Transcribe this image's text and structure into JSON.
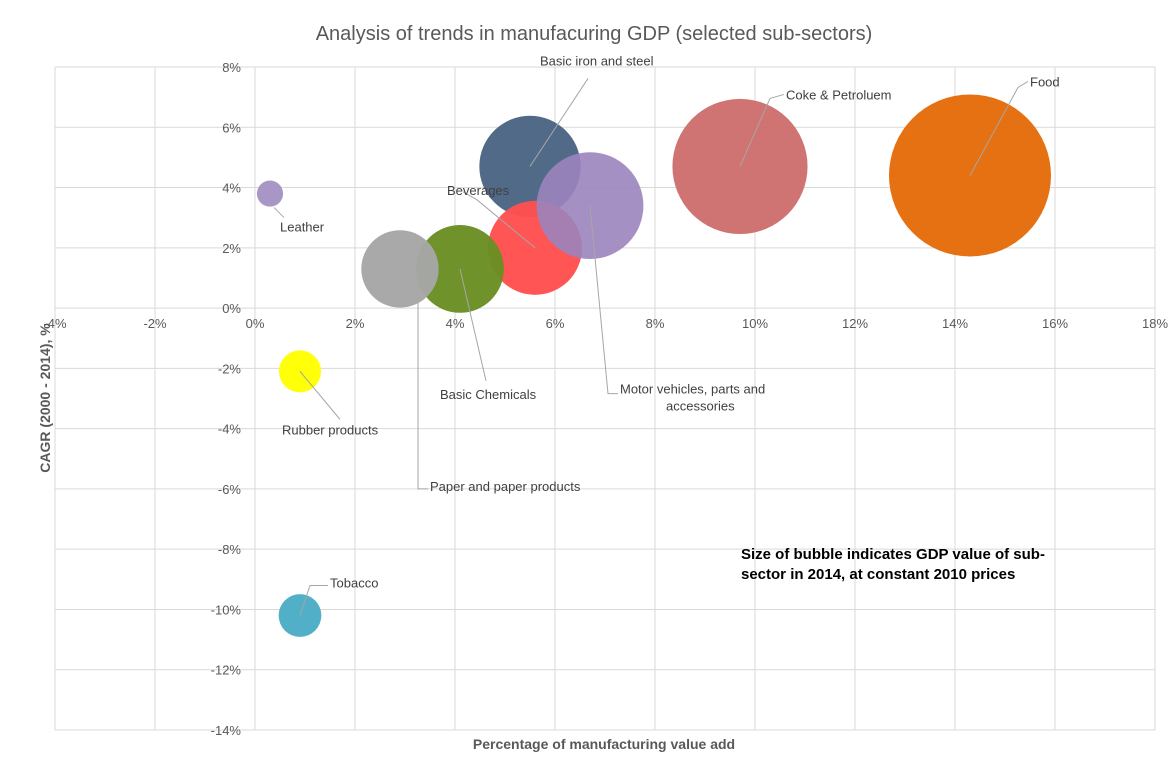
{
  "chart_data": {
    "type": "bubble",
    "title": "Analysis of trends in manufacuring GDP (selected sub-sectors)",
    "xlabel": "Percentage of manufacturing value add",
    "ylabel": "CAGR (2000 - 2014), %",
    "xlim": [
      -0.04,
      0.18
    ],
    "ylim": [
      -0.14,
      0.08
    ],
    "x_ticks": [
      -0.04,
      -0.02,
      0,
      0.02,
      0.04,
      0.06,
      0.08,
      0.1,
      0.12,
      0.14,
      0.16,
      0.18
    ],
    "x_tick_labels": [
      "-4%",
      "-2%",
      "0%",
      "2%",
      "4%",
      "6%",
      "8%",
      "10%",
      "12%",
      "14%",
      "16%",
      "18%"
    ],
    "y_ticks": [
      0.08,
      0.06,
      0.04,
      0.02,
      0,
      -0.02,
      -0.04,
      -0.06,
      -0.08,
      -0.1,
      -0.12,
      -0.14
    ],
    "y_tick_labels": [
      "8%",
      "6%",
      "4%",
      "2%",
      "0%",
      "-2%",
      "-4%",
      "-6%",
      "-8%",
      "-10%",
      "-12%",
      "-14%"
    ],
    "grid": true,
    "note": [
      "Size of bubble indicates GDP value of sub-",
      "sector in 2014, at constant 2010 prices"
    ],
    "series": [
      {
        "name": "Leather",
        "x": 0.003,
        "y": 0.038,
        "size": 1.2,
        "color": "#a594c4",
        "label": [
          "Leather"
        ]
      },
      {
        "name": "Rubber products",
        "x": 0.009,
        "y": -0.021,
        "size": 3.1,
        "color": "#ffff00",
        "label": [
          "Rubber products"
        ]
      },
      {
        "name": "Tobacco",
        "x": 0.009,
        "y": -0.102,
        "size": 3.2,
        "color": "#4bacc6",
        "label": [
          "Tobacco"
        ]
      },
      {
        "name": "Paper and paper products",
        "x": 0.029,
        "y": 0.013,
        "size": 10.5,
        "color": "#a6a6a6",
        "label": [
          "Paper and paper products"
        ]
      },
      {
        "name": "Basic Chemicals",
        "x": 0.041,
        "y": 0.013,
        "size": 13.5,
        "color": "#6b8e23",
        "label": [
          "Basic Chemicals"
        ]
      },
      {
        "name": "Beverages",
        "x": 0.056,
        "y": 0.02,
        "size": 15.5,
        "color": "#ff5050",
        "label": [
          "Beverages"
        ]
      },
      {
        "name": "Basic iron and steel",
        "x": 0.055,
        "y": 0.047,
        "size": 18.0,
        "color": "#4a6584",
        "label": [
          "Basic iron and steel"
        ]
      },
      {
        "name": "Motor vehicles, parts and accessories",
        "x": 0.067,
        "y": 0.034,
        "size": 20.0,
        "color": "#9b84bd",
        "label": [
          "Motor vehicles, parts and",
          "accessories"
        ]
      },
      {
        "name": "Coke & Petroluem",
        "x": 0.097,
        "y": 0.047,
        "size": 32.0,
        "color": "#cd6e6e",
        "label": [
          "Coke & Petroluem"
        ]
      },
      {
        "name": "Food",
        "x": 0.143,
        "y": 0.044,
        "size": 46.0,
        "color": "#e46c0a",
        "label": [
          "Food"
        ]
      }
    ]
  }
}
